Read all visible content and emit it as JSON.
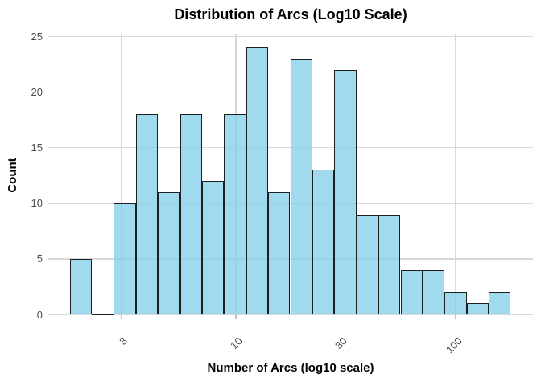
{
  "chart_data": {
    "type": "bar",
    "subtype": "histogram",
    "title": "Distribution of Arcs (Log10 Scale)",
    "xlabel": "Number of Arcs (log10 scale)",
    "ylabel": "Count",
    "x_scale": "log10",
    "x_tick_values": [
      3,
      10,
      30,
      100
    ],
    "x_tick_labels": [
      "3",
      "10",
      "30",
      "100"
    ],
    "y_tick_values": [
      0,
      5,
      10,
      15,
      20,
      25
    ],
    "ylim": [
      0,
      25
    ],
    "grid": true,
    "legend": "none",
    "bins": {
      "count": 20,
      "log10_bin_width": 0.1,
      "first_bin_left_edge_approx": 1.75,
      "last_bin_right_edge_approx": 177
    },
    "counts": [
      5,
      0,
      10,
      18,
      11,
      18,
      12,
      18,
      24,
      11,
      23,
      13,
      22,
      9,
      9,
      4,
      4,
      2,
      1,
      2
    ],
    "colors": {
      "bar_fill_rgba": "rgba(135,206,235,0.78)",
      "bar_fill_hex_on_white": "#A1D3E8",
      "bar_border": "#1E1E1E",
      "gridline": "#D8D8D8",
      "tick_mark": "#C4C4C4",
      "tick_label": "#4D4D4D",
      "text": "#000000",
      "background": "#FFFFFF"
    }
  }
}
